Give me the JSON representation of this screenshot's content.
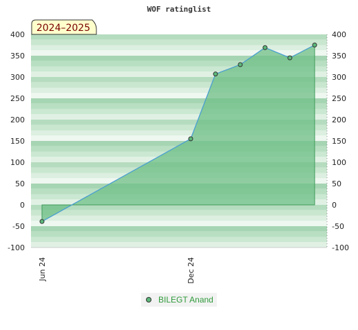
{
  "chart_data": {
    "type": "area",
    "title": "WOF ratinglist",
    "season_label": "2024–2025",
    "x_tick_labels": [
      "Jun 24",
      "Dec 24"
    ],
    "y_ticks": [
      400,
      350,
      300,
      250,
      200,
      150,
      100,
      50,
      0,
      -50,
      -100
    ],
    "ylim": [
      -100,
      400
    ],
    "series": [
      {
        "name": "BILEGT Anand",
        "points": [
          {
            "x": "2024-06",
            "y": -39
          },
          {
            "x": "2024-12",
            "y": 155
          },
          {
            "x": "2025-01",
            "y": 307
          },
          {
            "x": "2025-02",
            "y": 329
          },
          {
            "x": "2025-03",
            "y": 369
          },
          {
            "x": "2025-04",
            "y": 345
          },
          {
            "x": "2025-05",
            "y": 375
          }
        ]
      }
    ],
    "grid": true,
    "legend_position": "bottom-center"
  },
  "colors": {
    "area_fill": "#6fbf87",
    "line": "#4a9fd8",
    "marker": "#5cb87a",
    "legend_text": "#2e9a3a",
    "season_bg": "#ffffcc",
    "season_text": "#7a0000"
  }
}
